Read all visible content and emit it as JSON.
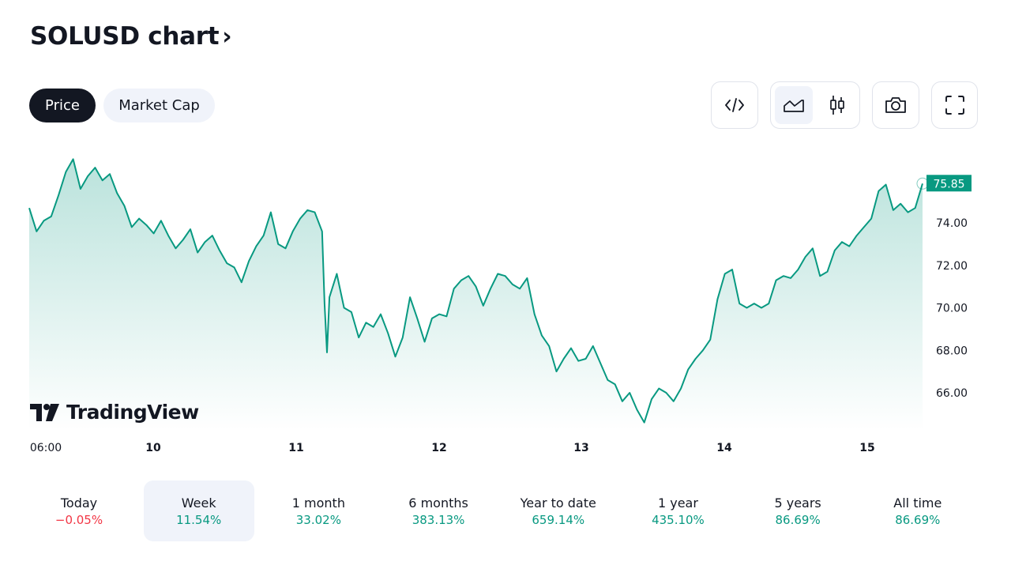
{
  "header": {
    "title": "SOLUSD chart",
    "chevron": "›"
  },
  "toggle": {
    "price_label": "Price",
    "mcap_label": "Market Cap"
  },
  "toolbar": {
    "icons": [
      "embed-code-icon",
      "area-chart-icon",
      "candlestick-icon",
      "camera-icon",
      "fullscreen-icon"
    ],
    "active": "area-chart-icon"
  },
  "branding": {
    "logo_text": "TradingView"
  },
  "colors": {
    "line": "#089981",
    "accent_dark": "#131722",
    "negative": "#f23645"
  },
  "chart_data": {
    "type": "area",
    "symbol": "SOLUSD",
    "last_price": "75.85",
    "x_ticks": [
      "06:00",
      "10",
      "11",
      "12",
      "13",
      "14",
      "15"
    ],
    "y_ticks": [
      "66.00",
      "68.00",
      "70.00",
      "72.00",
      "74.00"
    ],
    "ylim": [
      64.2,
      77.1
    ],
    "grid": false,
    "series": [
      {
        "points": [
          [
            0.0,
            74.7
          ],
          [
            0.03,
            73.6
          ],
          [
            0.06,
            74.1
          ],
          [
            0.09,
            74.3
          ],
          [
            0.12,
            75.3
          ],
          [
            0.15,
            76.4
          ],
          [
            0.18,
            77.0
          ],
          [
            0.21,
            75.6
          ],
          [
            0.24,
            76.2
          ],
          [
            0.27,
            76.6
          ],
          [
            0.3,
            76.0
          ],
          [
            0.33,
            76.3
          ],
          [
            0.36,
            75.4
          ],
          [
            0.39,
            74.8
          ],
          [
            0.42,
            73.8
          ],
          [
            0.45,
            74.2
          ],
          [
            0.48,
            73.9
          ],
          [
            0.51,
            73.5
          ],
          [
            0.54,
            74.1
          ],
          [
            0.57,
            73.4
          ],
          [
            0.6,
            72.8
          ],
          [
            0.63,
            73.2
          ],
          [
            0.66,
            73.7
          ],
          [
            0.69,
            72.6
          ],
          [
            0.72,
            73.1
          ],
          [
            0.75,
            73.4
          ],
          [
            0.78,
            72.7
          ],
          [
            0.81,
            72.1
          ],
          [
            0.84,
            71.9
          ],
          [
            0.87,
            71.2
          ],
          [
            0.9,
            72.2
          ],
          [
            0.93,
            72.9
          ],
          [
            0.96,
            73.4
          ],
          [
            0.99,
            74.5
          ],
          [
            1.02,
            73.0
          ],
          [
            1.05,
            72.8
          ],
          [
            1.08,
            73.6
          ],
          [
            1.11,
            74.2
          ],
          [
            1.14,
            74.6
          ],
          [
            1.17,
            74.5
          ],
          [
            1.2,
            73.6
          ],
          [
            1.21,
            70.2
          ],
          [
            1.22,
            67.9
          ],
          [
            1.23,
            70.5
          ],
          [
            1.26,
            71.6
          ],
          [
            1.29,
            70.0
          ],
          [
            1.32,
            69.8
          ],
          [
            1.35,
            68.6
          ],
          [
            1.38,
            69.3
          ],
          [
            1.41,
            69.1
          ],
          [
            1.44,
            69.7
          ],
          [
            1.47,
            68.8
          ],
          [
            1.5,
            67.7
          ],
          [
            1.53,
            68.6
          ],
          [
            1.56,
            70.5
          ],
          [
            1.59,
            69.5
          ],
          [
            1.62,
            68.4
          ],
          [
            1.65,
            69.5
          ],
          [
            1.68,
            69.7
          ],
          [
            1.71,
            69.6
          ],
          [
            1.74,
            70.9
          ],
          [
            1.77,
            71.3
          ],
          [
            1.8,
            71.5
          ],
          [
            1.83,
            71.0
          ],
          [
            1.86,
            70.1
          ],
          [
            1.89,
            70.9
          ],
          [
            1.92,
            71.6
          ],
          [
            1.95,
            71.5
          ],
          [
            1.98,
            71.1
          ],
          [
            2.01,
            70.9
          ],
          [
            2.04,
            71.4
          ],
          [
            2.07,
            69.7
          ],
          [
            2.1,
            68.7
          ],
          [
            2.13,
            68.2
          ],
          [
            2.16,
            67.0
          ],
          [
            2.19,
            67.6
          ],
          [
            2.22,
            68.1
          ],
          [
            2.25,
            67.5
          ],
          [
            2.28,
            67.6
          ],
          [
            2.31,
            68.2
          ],
          [
            2.34,
            67.4
          ],
          [
            2.37,
            66.6
          ],
          [
            2.4,
            66.4
          ],
          [
            2.43,
            65.6
          ],
          [
            2.46,
            66.0
          ],
          [
            2.49,
            65.2
          ],
          [
            2.52,
            64.6
          ],
          [
            2.55,
            65.7
          ],
          [
            2.58,
            66.2
          ],
          [
            2.61,
            66.0
          ],
          [
            2.64,
            65.6
          ],
          [
            2.67,
            66.2
          ],
          [
            2.7,
            67.1
          ],
          [
            2.73,
            67.6
          ],
          [
            2.76,
            68.0
          ],
          [
            2.79,
            68.5
          ],
          [
            2.82,
            70.4
          ],
          [
            2.85,
            71.6
          ],
          [
            2.88,
            71.8
          ],
          [
            2.91,
            70.2
          ],
          [
            2.94,
            70.0
          ],
          [
            2.97,
            70.2
          ],
          [
            3.0,
            70.0
          ],
          [
            3.03,
            70.2
          ],
          [
            3.06,
            71.3
          ],
          [
            3.09,
            71.5
          ],
          [
            3.12,
            71.4
          ],
          [
            3.15,
            71.8
          ],
          [
            3.18,
            72.4
          ],
          [
            3.21,
            72.8
          ],
          [
            3.24,
            71.5
          ],
          [
            3.27,
            71.7
          ],
          [
            3.3,
            72.7
          ],
          [
            3.33,
            73.1
          ],
          [
            3.36,
            72.9
          ],
          [
            3.39,
            73.4
          ],
          [
            3.42,
            73.8
          ],
          [
            3.45,
            74.2
          ],
          [
            3.48,
            75.5
          ],
          [
            3.51,
            75.8
          ],
          [
            3.54,
            74.6
          ],
          [
            3.57,
            74.9
          ],
          [
            3.6,
            74.5
          ],
          [
            3.63,
            74.7
          ],
          [
            3.66,
            75.85
          ]
        ]
      }
    ]
  },
  "periods": [
    {
      "label": "Today",
      "value": "−0.05%",
      "sign": "neg"
    },
    {
      "label": "Week",
      "value": "11.54%",
      "sign": "pos",
      "active": true
    },
    {
      "label": "1 month",
      "value": "33.02%",
      "sign": "pos"
    },
    {
      "label": "6 months",
      "value": "383.13%",
      "sign": "pos"
    },
    {
      "label": "Year to date",
      "value": "659.14%",
      "sign": "pos"
    },
    {
      "label": "1 year",
      "value": "435.10%",
      "sign": "pos"
    },
    {
      "label": "5 years",
      "value": "86.69%",
      "sign": "pos"
    },
    {
      "label": "All time",
      "value": "86.69%",
      "sign": "pos"
    }
  ]
}
